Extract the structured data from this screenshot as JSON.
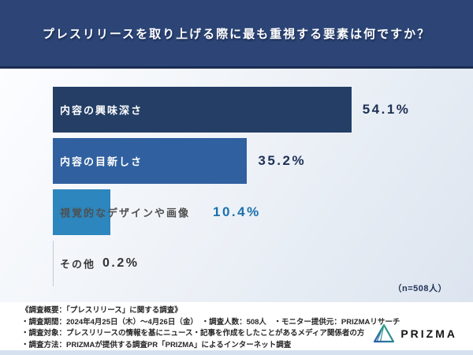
{
  "header": {
    "title": "プレスリリースを取り上げる際に最も重視する要素は何ですか？",
    "bg_color": "#2c4576"
  },
  "chart_data": {
    "type": "bar",
    "orientation": "horizontal",
    "title": "プレスリリースを取り上げる際に最も重視する要素は何ですか？",
    "categories": [
      "内容の興味深さ",
      "内容の目新しさ",
      "視覚的なデザインや画像",
      "その他"
    ],
    "values": [
      54.1,
      35.2,
      10.4,
      0.2
    ],
    "value_labels": [
      "54.1%",
      "35.2%",
      "10.4%",
      "0.2%"
    ],
    "bar_colors": [
      "#243e66",
      "#30609f",
      "#2d86be",
      "#c2ccd8"
    ],
    "label_colors": [
      "#ffffff",
      "#ffffff",
      "#4f4f4f",
      "#383838"
    ],
    "value_colors": [
      "#1e3156",
      "#1e3156",
      "#1c70ad",
      "#333333"
    ],
    "sample_size_label": "（n=508人）",
    "xlim": [
      0,
      76
    ],
    "grid": false,
    "legend": false,
    "axis_labels_shown": false
  },
  "footer": {
    "lines": [
      "《調査概要：「プレスリリース」に関する調査》",
      "・調査期間：2024年4月25日（木）〜4月26日（金）　・調査人数：508人　・モニター提供元：PRIZMAリサーチ",
      "・調査対象：プレスリリースの情報を基にニュース・記事を作成をしたことがあるメディア関係者の方",
      "・調査方法：PRIZMAが提供する調査PR「PRIZMA」によるインターネット調査"
    ],
    "logo_text": "PRIZMA",
    "logo_colors": {
      "gradient_start": "#2a5caa",
      "gradient_end": "#2fae7d"
    }
  }
}
